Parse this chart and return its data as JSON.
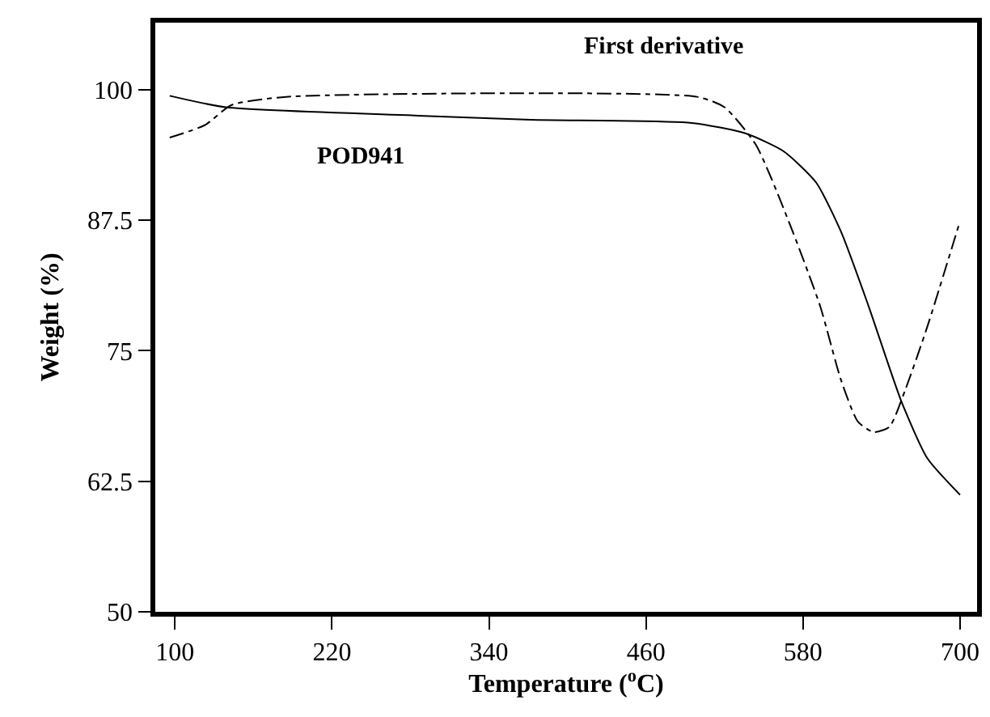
{
  "chart_data": {
    "type": "line",
    "xlabel": "Temperature ($^{o}$C)",
    "ylabel": "Weight (%)",
    "xlim": [
      85,
      713
    ],
    "ylim": [
      50,
      106.4
    ],
    "xticks": [
      100,
      220,
      340,
      460,
      580,
      700
    ],
    "yticks": [
      50,
      {
        "value": 62.5,
        "label": "62.5"
      },
      75,
      {
        "value": 87.5,
        "label": "87.5"
      },
      100
    ],
    "series": [
      {
        "name": "POD941",
        "color": "#000000",
        "line_style": "solid",
        "x": [
          96,
          139,
          286,
          372,
          495,
          536,
          565,
          590,
          609,
          630,
          655,
          675,
          700
        ],
        "values": [
          99.4,
          98.3,
          97.5,
          97.1,
          96.8,
          95.8,
          94.1,
          91.1,
          86.4,
          79.3,
          70.2,
          64.7,
          61.2
        ]
      },
      {
        "name": "First derivative",
        "color": "#000000",
        "line_style": "dashed",
        "x": [
          96,
          123,
          143,
          185,
          499,
          520,
          544,
          569,
          593,
          609,
          622,
          634,
          646,
          658,
          675,
          700
        ],
        "values": [
          95.4,
          96.6,
          98.5,
          99.3,
          99.3,
          98.3,
          94.7,
          87.4,
          79.3,
          72.2,
          68.2,
          67.2,
          67.7,
          71.2,
          77.3,
          87.4
        ]
      }
    ]
  }
}
